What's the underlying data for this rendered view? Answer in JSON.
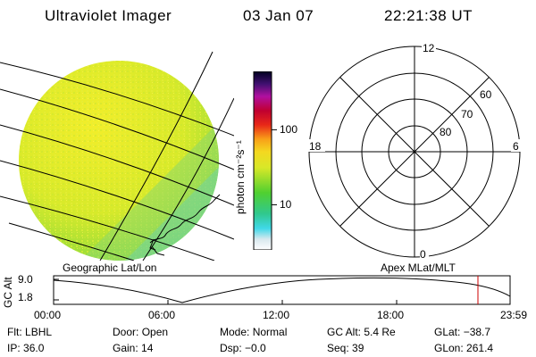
{
  "header": {
    "instrument": "Ultraviolet Imager",
    "date": "03 Jan 07",
    "time": "22:21:38 UT"
  },
  "colorbar": {
    "unit": "photon cm⁻²s⁻¹",
    "scale": "log",
    "ticks": [
      {
        "label": "100",
        "value": 100
      },
      {
        "label": "10",
        "value": 10
      }
    ]
  },
  "polar_plot": {
    "mlt_labels": {
      "top": "12",
      "left": "18",
      "right": "6",
      "bottom": "0"
    },
    "lat_labels": [
      "60",
      "70",
      "80"
    ]
  },
  "projection_labels": {
    "left": "Geographic Lat/Lon",
    "right": "Apex MLat/MLT"
  },
  "altitude_plot": {
    "ylabel": "GC Alt",
    "yticks": [
      "9.0",
      "1.8"
    ],
    "xticks": [
      "00:00",
      "06:00",
      "12:00",
      "18:00",
      "23:59"
    ],
    "current_time_marker": "22:21",
    "marker_color": "#cc0000"
  },
  "status": {
    "row1": [
      {
        "key": "Flt:",
        "value": "LBHL"
      },
      {
        "key": "Door:",
        "value": "Open"
      },
      {
        "key": "Mode:",
        "value": "Normal"
      },
      {
        "key": "GC Alt:",
        "value": "5.4 Re"
      },
      {
        "key": "GLat:",
        "value": "−38.7"
      }
    ],
    "row2": [
      {
        "key": "IP:",
        "value": "36.0"
      },
      {
        "key": "Gain:",
        "value": "14"
      },
      {
        "key": "Dsp:",
        "value": "−0.0"
      },
      {
        "key": "Seq:",
        "value": "39"
      },
      {
        "key": "GLon:",
        "value": "261.4"
      }
    ]
  }
}
